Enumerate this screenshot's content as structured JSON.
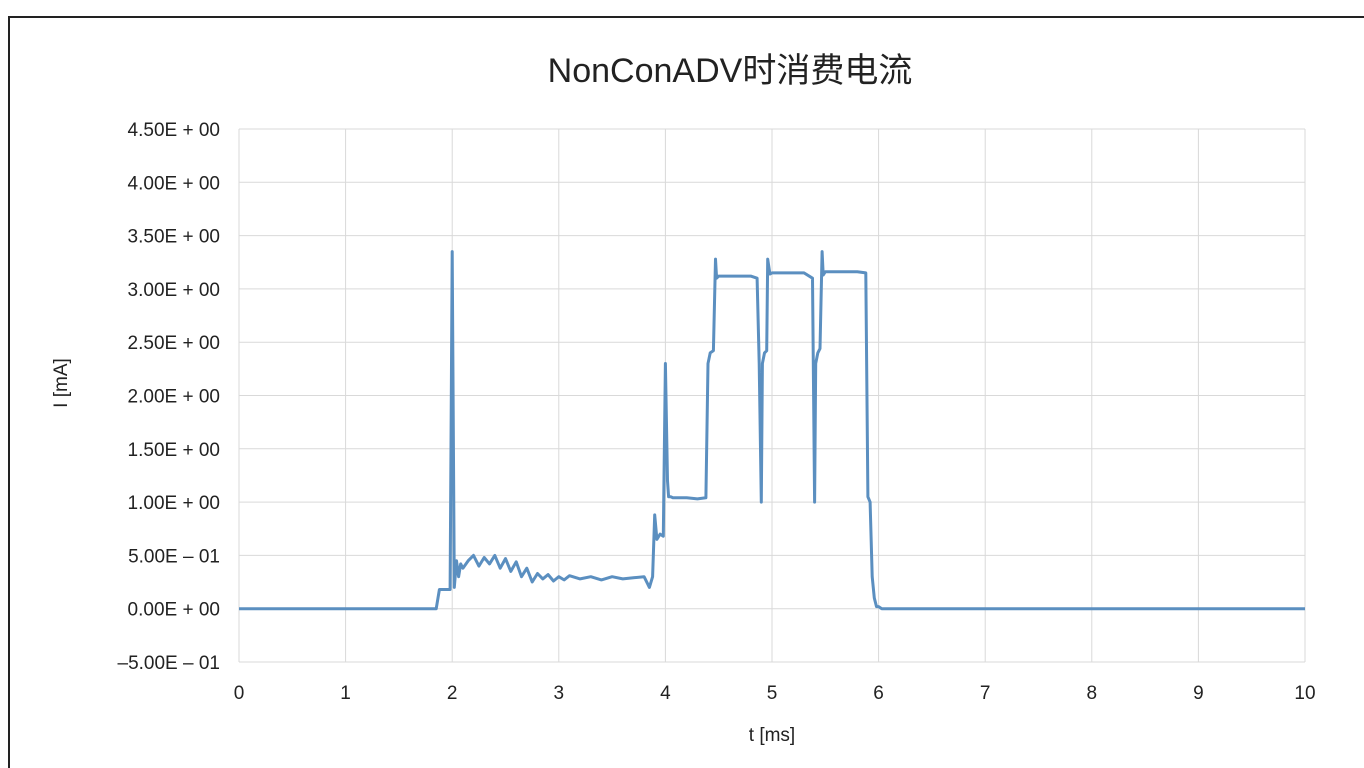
{
  "chart_data": {
    "type": "line",
    "title": "NonConADV时消费电流",
    "xlabel": "t [ms]",
    "ylabel": "I [mA]",
    "xlim": [
      0,
      10
    ],
    "ylim": [
      -0.5,
      4.5
    ],
    "x_ticks": [
      0,
      1,
      2,
      3,
      4,
      5,
      6,
      7,
      8,
      9,
      10
    ],
    "x_tick_labels": [
      "0",
      "1",
      "2",
      "3",
      "4",
      "5",
      "6",
      "7",
      "8",
      "9",
      "10"
    ],
    "y_ticks": [
      4.5,
      4.0,
      3.5,
      3.0,
      2.5,
      2.0,
      1.5,
      1.0,
      0.5,
      0.0,
      -0.5
    ],
    "y_tick_labels": [
      "4.50E + 00",
      "4.00E + 00",
      "3.50E + 00",
      "3.00E + 00",
      "2.50E + 00",
      "2.00E + 00",
      "1.50E + 00",
      "1.00E + 00",
      "5.00E – 01",
      "0.00E + 00",
      "–5.00E – 01"
    ],
    "grid": true,
    "line_color": "#5b8fc0",
    "series": [
      {
        "x": [
          0,
          1.85,
          1.88,
          1.98,
          2.0,
          2.02,
          2.04,
          2.06,
          2.08,
          2.1,
          2.15,
          2.2,
          2.25,
          2.3,
          2.35,
          2.4,
          2.45,
          2.5,
          2.55,
          2.6,
          2.65,
          2.7,
          2.75,
          2.8,
          2.85,
          2.9,
          2.95,
          3.0,
          3.05,
          3.1,
          3.2,
          3.3,
          3.4,
          3.5,
          3.6,
          3.7,
          3.8,
          3.85,
          3.88,
          3.9,
          3.92,
          3.95,
          3.98,
          4.0,
          4.02,
          4.03,
          4.05,
          4.07,
          4.1,
          4.2,
          4.3,
          4.38,
          4.4,
          4.42,
          4.45,
          4.47,
          4.48,
          4.5,
          4.53,
          4.6,
          4.7,
          4.8,
          4.86,
          4.88,
          4.9,
          4.91,
          4.93,
          4.95,
          4.96,
          4.98,
          5.0,
          5.03,
          5.1,
          5.2,
          5.3,
          5.38,
          5.4,
          5.41,
          5.43,
          5.45,
          5.47,
          5.48,
          5.5,
          5.53,
          5.6,
          5.7,
          5.8,
          5.88,
          5.9,
          5.92,
          5.94,
          5.96,
          5.98,
          6.0,
          6.03,
          6.1,
          7,
          8,
          9,
          10
        ],
        "y": [
          0.0,
          0.0,
          0.18,
          0.18,
          3.35,
          0.2,
          0.45,
          0.3,
          0.42,
          0.38,
          0.45,
          0.5,
          0.4,
          0.48,
          0.42,
          0.5,
          0.38,
          0.47,
          0.35,
          0.44,
          0.3,
          0.38,
          0.25,
          0.33,
          0.28,
          0.32,
          0.26,
          0.3,
          0.27,
          0.31,
          0.28,
          0.3,
          0.27,
          0.3,
          0.28,
          0.29,
          0.3,
          0.2,
          0.3,
          0.88,
          0.65,
          0.7,
          0.68,
          2.3,
          1.2,
          1.05,
          1.05,
          1.04,
          1.04,
          1.04,
          1.03,
          1.04,
          2.3,
          2.4,
          2.42,
          3.28,
          3.1,
          3.12,
          3.12,
          3.12,
          3.12,
          3.12,
          3.1,
          2.3,
          1.0,
          2.3,
          2.4,
          2.42,
          3.28,
          3.14,
          3.15,
          3.15,
          3.15,
          3.15,
          3.15,
          3.1,
          1.0,
          2.3,
          2.4,
          2.44,
          3.35,
          3.13,
          3.16,
          3.16,
          3.16,
          3.16,
          3.16,
          3.15,
          1.05,
          1.0,
          0.3,
          0.1,
          0.02,
          0.02,
          0.0,
          0.0,
          0.0,
          0.0,
          0.0,
          0.0
        ]
      }
    ]
  }
}
